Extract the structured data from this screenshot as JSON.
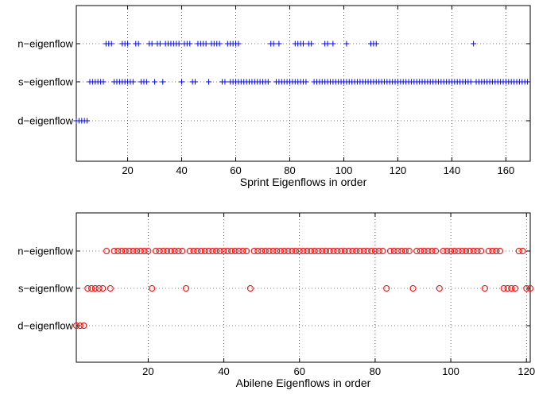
{
  "chart_data": [
    {
      "type": "scatter",
      "xlabel": "Sprint Eigenflows in order",
      "xlim": [
        1,
        169
      ],
      "xticks": [
        20,
        40,
        60,
        80,
        100,
        120,
        140,
        160
      ],
      "categories": [
        "d−eigenflow",
        "s−eigenflow",
        "n−eigenflow"
      ],
      "marker": "plus",
      "color": "#0000ff",
      "grid": true,
      "series": [
        {
          "category": "d−eigenflow",
          "x": [
            1,
            2,
            3,
            4,
            5
          ]
        },
        {
          "category": "s−eigenflow",
          "x": [
            6,
            7,
            8,
            9,
            10,
            11,
            15,
            16,
            17,
            18,
            19,
            20,
            21,
            22,
            25,
            26,
            27,
            30,
            33,
            40,
            44,
            45,
            50,
            55,
            56,
            58,
            59,
            60,
            61,
            62,
            63,
            64,
            65,
            66,
            67,
            68,
            69,
            70,
            71,
            72,
            75,
            76,
            77,
            78,
            79,
            80,
            81,
            82,
            83,
            84,
            85,
            86,
            89,
            90,
            91,
            92,
            93,
            94,
            95,
            96,
            97,
            98,
            99,
            100,
            101,
            102,
            103,
            104,
            105,
            106,
            107,
            108,
            109,
            110,
            111,
            112,
            113,
            114,
            115,
            116,
            117,
            118,
            119,
            120,
            121,
            122,
            123,
            124,
            125,
            126,
            127,
            128,
            129,
            130,
            131,
            132,
            133,
            134,
            135,
            136,
            137,
            138,
            139,
            140,
            141,
            142,
            143,
            144,
            145,
            146,
            147,
            149,
            150,
            151,
            152,
            153,
            154,
            155,
            156,
            157,
            158,
            159,
            160,
            161,
            162,
            163,
            164,
            165,
            166,
            167,
            168
          ]
        },
        {
          "category": "n−eigenflow",
          "x": [
            12,
            13,
            14,
            18,
            19,
            20,
            23,
            24,
            28,
            29,
            31,
            32,
            34,
            35,
            36,
            37,
            38,
            39,
            41,
            42,
            43,
            46,
            47,
            48,
            49,
            51,
            52,
            53,
            54,
            57,
            58,
            59,
            60,
            61,
            73,
            74,
            76,
            82,
            83,
            84,
            85,
            87,
            88,
            93,
            94,
            96,
            101,
            110,
            111,
            112,
            148
          ]
        }
      ]
    },
    {
      "type": "scatter",
      "xlabel": "Abilene Eigenflows in order",
      "xlim": [
        1,
        121
      ],
      "xticks": [
        20,
        40,
        60,
        80,
        100,
        120
      ],
      "categories": [
        "d−eigenflow",
        "s−eigenflow",
        "n−eigenflow"
      ],
      "marker": "circle",
      "color": "#ff0000",
      "grid": true,
      "series": [
        {
          "category": "d−eigenflow",
          "x": [
            1,
            2,
            3
          ]
        },
        {
          "category": "s−eigenflow",
          "x": [
            4,
            5,
            6,
            7,
            8,
            10,
            21,
            30,
            47,
            83,
            90,
            97,
            109,
            114,
            115,
            116,
            117,
            120,
            121
          ]
        },
        {
          "category": "n−eigenflow",
          "x": [
            9,
            11,
            12,
            13,
            14,
            15,
            16,
            17,
            18,
            19,
            20,
            22,
            23,
            24,
            25,
            26,
            27,
            28,
            29,
            31,
            32,
            33,
            34,
            35,
            36,
            37,
            38,
            39,
            40,
            41,
            42,
            43,
            44,
            45,
            46,
            48,
            49,
            50,
            51,
            52,
            53,
            54,
            55,
            56,
            57,
            58,
            59,
            60,
            61,
            62,
            63,
            64,
            65,
            66,
            67,
            68,
            69,
            70,
            71,
            72,
            73,
            74,
            75,
            76,
            77,
            78,
            79,
            80,
            81,
            82,
            84,
            85,
            86,
            87,
            88,
            89,
            91,
            92,
            93,
            94,
            95,
            96,
            98,
            99,
            100,
            101,
            102,
            103,
            104,
            105,
            106,
            107,
            108,
            110,
            111,
            112,
            113,
            118,
            119
          ]
        }
      ]
    }
  ]
}
